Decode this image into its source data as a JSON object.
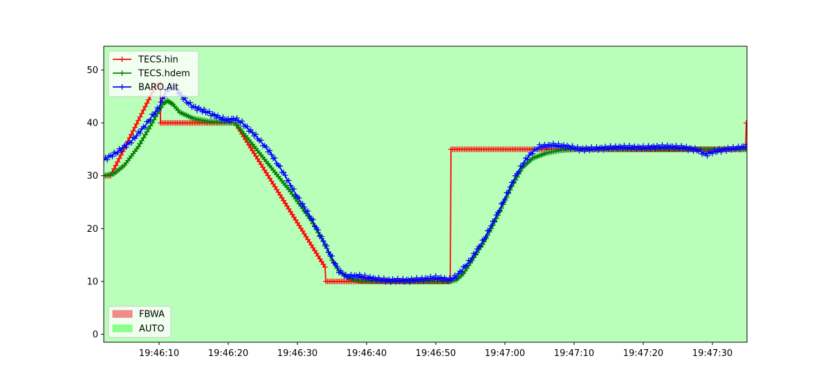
{
  "chart_data": {
    "type": "line",
    "background_mode": "AUTO",
    "xlim": [
      3,
      96
    ],
    "ylim": [
      -1.5,
      54.5
    ],
    "x_ticks": [
      {
        "value": 11,
        "label": "19:46:10"
      },
      {
        "value": 21,
        "label": "19:46:20"
      },
      {
        "value": 31,
        "label": "19:46:30"
      },
      {
        "value": 41,
        "label": "19:46:40"
      },
      {
        "value": 51,
        "label": "19:46:50"
      },
      {
        "value": 61,
        "label": "19:47:00"
      },
      {
        "value": 71,
        "label": "19:47:10"
      },
      {
        "value": 81,
        "label": "19:47:20"
      },
      {
        "value": 91,
        "label": "19:47:30"
      }
    ],
    "y_ticks": [
      0,
      10,
      20,
      30,
      40,
      50
    ],
    "series": [
      {
        "name": "TECS.hin",
        "color": "#ff0000",
        "points": [
          [
            3,
            30
          ],
          [
            4,
            30
          ],
          [
            10.5,
            47
          ],
          [
            11.2,
            47.5
          ],
          [
            11.2,
            40
          ],
          [
            20,
            40
          ],
          [
            22,
            40
          ],
          [
            35,
            12.7
          ],
          [
            35.1,
            10
          ],
          [
            53.1,
            10
          ],
          [
            53.2,
            35
          ],
          [
            66,
            35
          ],
          [
            95.8,
            35
          ],
          [
            95.9,
            40
          ]
        ]
      },
      {
        "name": "TECS.hdem",
        "color": "#008000",
        "points": [
          [
            3,
            30
          ],
          [
            4.5,
            30.4
          ],
          [
            6,
            32
          ],
          [
            8,
            35.5
          ],
          [
            10,
            40
          ],
          [
            11.5,
            43.5
          ],
          [
            12.2,
            44.2
          ],
          [
            13,
            43.5
          ],
          [
            14,
            42
          ],
          [
            16,
            40.8
          ],
          [
            18,
            40.3
          ],
          [
            20,
            40.1
          ],
          [
            22,
            40
          ],
          [
            30,
            27
          ],
          [
            33,
            21.5
          ],
          [
            35,
            17
          ],
          [
            36,
            14
          ],
          [
            37,
            12
          ],
          [
            38.5,
            10.6
          ],
          [
            40,
            10.1
          ],
          [
            45,
            10
          ],
          [
            53,
            10
          ],
          [
            54,
            10.3
          ],
          [
            55,
            11.5
          ],
          [
            56,
            13.5
          ],
          [
            58,
            17.5
          ],
          [
            60,
            22.5
          ],
          [
            62,
            28
          ],
          [
            63.5,
            31.5
          ],
          [
            65,
            33.3
          ],
          [
            67,
            34.3
          ],
          [
            69,
            34.8
          ],
          [
            71,
            35
          ],
          [
            96,
            35
          ]
        ]
      },
      {
        "name": "BARO.Alt",
        "color": "#0000ff",
        "points": [
          [
            3,
            33
          ],
          [
            5,
            34.5
          ],
          [
            7,
            36.5
          ],
          [
            9,
            39.5
          ],
          [
            11,
            43
          ],
          [
            12,
            46
          ],
          [
            13,
            47
          ],
          [
            14,
            45.5
          ],
          [
            15,
            44
          ],
          [
            16,
            43
          ],
          [
            18,
            42
          ],
          [
            20,
            40.8
          ],
          [
            21,
            40.5
          ],
          [
            22,
            40.8
          ],
          [
            23,
            40
          ],
          [
            25,
            37.5
          ],
          [
            27,
            34.5
          ],
          [
            29,
            30.5
          ],
          [
            31,
            26
          ],
          [
            33,
            22
          ],
          [
            35,
            17
          ],
          [
            36,
            14.5
          ],
          [
            37,
            12
          ],
          [
            38,
            11
          ],
          [
            40,
            11
          ],
          [
            42,
            10.5
          ],
          [
            44,
            10.2
          ],
          [
            47,
            10.2
          ],
          [
            49,
            10.4
          ],
          [
            51,
            10.7
          ],
          [
            53,
            10.3
          ],
          [
            54,
            11
          ],
          [
            55,
            12.5
          ],
          [
            56,
            14
          ],
          [
            58,
            18
          ],
          [
            60,
            23
          ],
          [
            62,
            28.5
          ],
          [
            63,
            31
          ],
          [
            64,
            33
          ],
          [
            65,
            34.5
          ],
          [
            66,
            35.5
          ],
          [
            68,
            35.8
          ],
          [
            70,
            35.5
          ],
          [
            72,
            35
          ],
          [
            75,
            35.2
          ],
          [
            78,
            35.4
          ],
          [
            81,
            35.3
          ],
          [
            84,
            35.5
          ],
          [
            87,
            35.3
          ],
          [
            89,
            34.8
          ],
          [
            90,
            34
          ],
          [
            91,
            34.5
          ],
          [
            93,
            35
          ],
          [
            95,
            35.3
          ],
          [
            96,
            35.6
          ]
        ]
      }
    ],
    "mode_legend": [
      {
        "name": "FBWA",
        "color": "#f08080"
      },
      {
        "name": "AUTO",
        "color": "#7fff7f"
      }
    ]
  }
}
